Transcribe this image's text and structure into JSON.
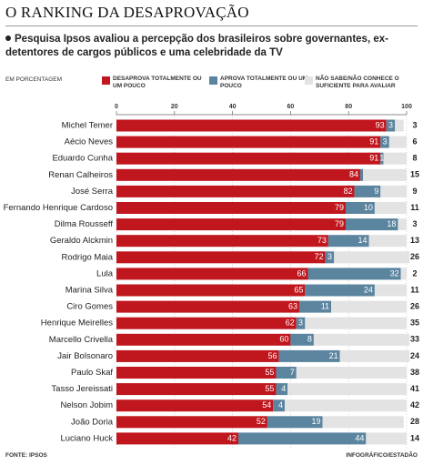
{
  "title": "O RANKING DA DESAPROVAÇÃO",
  "subtitle": "Pesquisa Ipsos avaliou a percepção dos brasileiros sobre governantes, ex-detentores de cargos públicos e uma celebridade da TV",
  "unit_note": "EM PORCENTAGEM",
  "source": "FONTE: IPSOS",
  "credit": "INFOGRÁFICO/ESTADÃO",
  "chart_data": {
    "type": "stacked-bar-horizontal",
    "categories": [
      "Michel Temer",
      "Aécio Neves",
      "Eduardo Cunha",
      "Renan Calheiros",
      "José Serra",
      "Fernando Henrique Cardoso",
      "Dilma Rousseff",
      "Geraldo Alckmin",
      "Rodrigo Maia",
      "Lula",
      "Marina Silva",
      "Ciro Gomes",
      "Henrique Meirelles",
      "Marcello Crivella",
      "Jair Bolsonaro",
      "Paulo Skaf",
      "Tasso Jereissati",
      "Nelson Jobim",
      "João Doria",
      "Luciano Huck"
    ],
    "series": [
      {
        "name": "DESAPROVA TOTALMENTE OU UM POUCO",
        "color": "#c0161d",
        "values": [
          93,
          91,
          91,
          84,
          82,
          79,
          79,
          73,
          72,
          66,
          65,
          63,
          62,
          60,
          56,
          55,
          55,
          54,
          52,
          42
        ]
      },
      {
        "name": "APROVA TOTALMENTE OU UM POUCO",
        "color": "#5b849f",
        "values": [
          3,
          3,
          1,
          1,
          9,
          10,
          18,
          14,
          3,
          32,
          24,
          11,
          3,
          8,
          21,
          7,
          4,
          4,
          19,
          44
        ],
        "value_labels": [
          "3",
          "3",
          "1",
          null,
          "9",
          "10",
          "18",
          "14",
          "3",
          "32",
          "24",
          "11",
          "3",
          "8",
          "21",
          "7",
          "4",
          "4",
          "19",
          "44"
        ]
      },
      {
        "name": "NÃO SABE/NÃO CONHECE O SUFICIENTE PARA AVALIAR",
        "color": "#e3e3e3",
        "values": [
          3,
          6,
          8,
          15,
          9,
          11,
          3,
          13,
          26,
          2,
          11,
          26,
          35,
          33,
          24,
          38,
          41,
          42,
          28,
          14
        ]
      }
    ],
    "xlim": [
      0,
      100
    ],
    "xticks": [
      0,
      20,
      40,
      60,
      80,
      100
    ],
    "grid": true
  }
}
